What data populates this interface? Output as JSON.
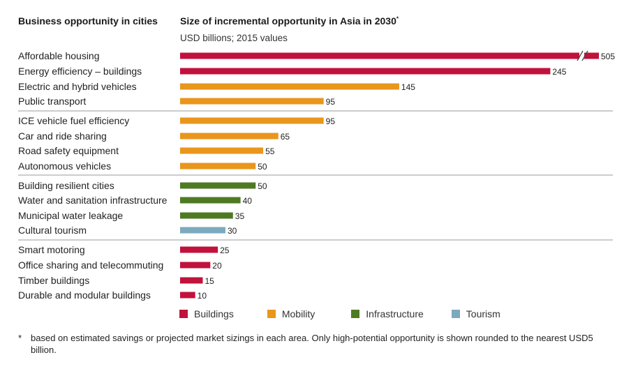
{
  "header": {
    "left_title": "Business opportunity in cities",
    "right_title": "Size of incremental opportunity in Asia in 2030",
    "right_title_marker": "*",
    "units": "USD billions; 2015 values"
  },
  "chart_data": {
    "type": "bar",
    "orientation": "horizontal",
    "categories": [
      "Affordable housing",
      "Energy efficiency – buildings",
      "Electric and hybrid vehicles",
      "Public transport",
      "ICE vehicle fuel efficiency",
      "Car and ride sharing",
      "Road safety equipment",
      "Autonomous vehicles",
      "Building resilient cities",
      "Water and sanitation infrastructure",
      "Municipal water leakage",
      "Cultural tourism",
      "Smart motoring",
      "Office sharing and telecommuting",
      "Timber buildings",
      "Durable and modular buildings"
    ],
    "values": [
      505,
      245,
      145,
      95,
      95,
      65,
      55,
      50,
      50,
      40,
      35,
      30,
      25,
      20,
      15,
      10
    ],
    "value_labels": [
      "505",
      "245",
      "145",
      "95",
      "95",
      "65",
      "55",
      "50",
      "50",
      "40",
      "35",
      "30",
      "25",
      "20",
      "15",
      "10"
    ],
    "groups": [
      "Buildings",
      "Buildings",
      "Mobility",
      "Mobility",
      "Mobility",
      "Mobility",
      "Mobility",
      "Mobility",
      "Infrastructure",
      "Infrastructure",
      "Infrastructure",
      "Tourism",
      "Buildings",
      "Buildings",
      "Buildings",
      "Buildings"
    ],
    "section_breaks_after": [
      3,
      7,
      11
    ],
    "axis_break": {
      "category": "Affordable housing",
      "note": "bar truncated with break marks"
    },
    "legend": [
      {
        "name": "Buildings",
        "color": "#c0123c"
      },
      {
        "name": "Mobility",
        "color": "#e9961c"
      },
      {
        "name": "Infrastructure",
        "color": "#4f7a24"
      },
      {
        "name": "Tourism",
        "color": "#7ca9be"
      }
    ],
    "legend_placement": "bottom"
  },
  "footnote": {
    "marker": "*",
    "text": "based on estimated savings or projected market sizings in each area. Only high-potential opportunity is shown rounded to the nearest USD5 billion."
  }
}
